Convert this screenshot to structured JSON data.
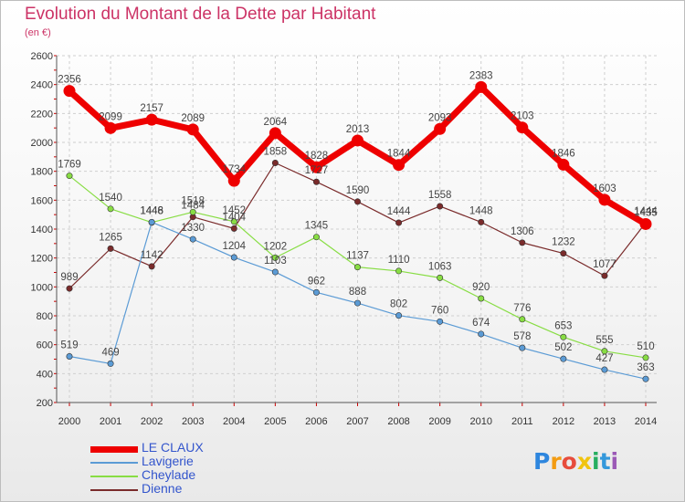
{
  "title": "Evolution du Montant de la Dette par Habitant",
  "subtitle": "(en €)",
  "logo": {
    "text": "Proxiti",
    "letters": [
      "P",
      "r",
      "o",
      "x",
      "i",
      "t",
      "i"
    ]
  },
  "chart_data": {
    "type": "line",
    "title": "Evolution du Montant de la Dette par Habitant",
    "subtitle": "(en €)",
    "categories": [
      "2000",
      "2001",
      "2002",
      "2003",
      "2004",
      "2005",
      "2006",
      "2007",
      "2008",
      "2009",
      "2010",
      "2011",
      "2012",
      "2013",
      "2014"
    ],
    "ylim": [
      200,
      2600
    ],
    "yticks": [
      200,
      400,
      600,
      800,
      1000,
      1200,
      1400,
      1600,
      1800,
      2000,
      2200,
      2400,
      2600
    ],
    "grid": true,
    "legend": "bottom-left",
    "series": [
      {
        "name": "LE CLAUX",
        "color": "#ee0000",
        "width": "thick",
        "values": [
          2356,
          2099,
          2157,
          2089,
          1734,
          2064,
          1828,
          2013,
          1844,
          2093,
          2383,
          2103,
          1846,
          1603,
          1435
        ],
        "labels": [
          "2356",
          "2099",
          "2157",
          "2089",
          "1734",
          "2064",
          "1828",
          "2013",
          "1844",
          "2093",
          "2383",
          "2103",
          "1846",
          "1603",
          "1435"
        ]
      },
      {
        "name": "Lavigerie",
        "color": "#5b9bd5",
        "width": "thin",
        "values": [
          519,
          469,
          1448,
          1330,
          1204,
          1103,
          962,
          888,
          802,
          760,
          674,
          578,
          502,
          427,
          363
        ],
        "labels": [
          "519",
          "469",
          "1448",
          "1330",
          "1204",
          "1103",
          "962",
          "888",
          "802",
          "760",
          "674",
          "578",
          "502",
          "427",
          "363"
        ]
      },
      {
        "name": "Cheylade",
        "color": "#88dd44",
        "width": "thin",
        "values": [
          1769,
          1540,
          1446,
          1518,
          1452,
          1202,
          1345,
          1137,
          1110,
          1063,
          920,
          776,
          653,
          555,
          510
        ],
        "labels": [
          "1769",
          "1540",
          "1446",
          "1518",
          "1452",
          "1202",
          "1345",
          "1137",
          "1110",
          "1063",
          "920",
          "776",
          "653",
          "555",
          "510"
        ]
      },
      {
        "name": "Dienne",
        "color": "#7a2b2b",
        "width": "thin",
        "values": [
          989,
          1265,
          1142,
          1484,
          1404,
          1858,
          1727,
          1590,
          1444,
          1558,
          1448,
          1306,
          1232,
          1077,
          1444
        ],
        "labels": [
          "989",
          "1265",
          "1142",
          "1484",
          "1404",
          "1858",
          "1727",
          "1590",
          "1444",
          "1558",
          "1448",
          "1306",
          "1232",
          "1077",
          "1444"
        ]
      }
    ]
  }
}
